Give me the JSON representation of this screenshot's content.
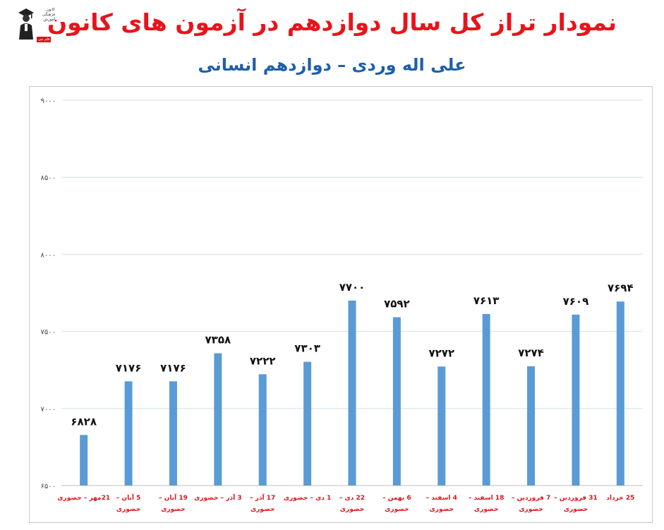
{
  "header": {
    "title": "نمودار تراز کل سال دوازدهم در آزمون های کانون",
    "subtitle": "علی اله وردی – دوازدهم انسانی"
  },
  "logo": {
    "text": "کانون فرهنگی آموزش",
    "badge": "قلم چی"
  },
  "colors": {
    "title": "#e8141b",
    "subtitle": "#1f5fa8",
    "bar": "#5b9bd5",
    "grid": "#cfe0ee",
    "xlabel": "#e0141b"
  },
  "chart_data": {
    "type": "bar",
    "categories": [
      [
        "21مهر – حضوری"
      ],
      [
        "5 آبان –",
        "حضوری"
      ],
      [
        "19 آبان –",
        "حضوری"
      ],
      [
        "3 آذر – حضوری"
      ],
      [
        "17 آذر –",
        "حضوری"
      ],
      [
        "1 دی – حضوری"
      ],
      [
        "22 دی –",
        "حضوری"
      ],
      [
        "6 بهمن –",
        "حضوری"
      ],
      [
        "4 اسفند –",
        "حضوری"
      ],
      [
        "18 اسفند –",
        "حضوری"
      ],
      [
        "7 فروردین –",
        "حضوری"
      ],
      [
        "31 فروردین –",
        "حضوری"
      ],
      [
        "25 خرداد"
      ]
    ],
    "values": [
      6828,
      7176,
      7176,
      7358,
      7222,
      7303,
      7700,
      7592,
      7272,
      7613,
      7274,
      7609,
      7694
    ],
    "value_labels": [
      "۶۸۲۸",
      "۷۱۷۶",
      "۷۱۷۶",
      "۷۳۵۸",
      "۷۲۲۲",
      "۷۳۰۳",
      "۷۷۰۰",
      "۷۵۹۲",
      "۷۲۷۲",
      "۷۶۱۳",
      "۷۲۷۴",
      "۷۶۰۹",
      "۷۶۹۴"
    ],
    "ylim": [
      6500,
      9000
    ],
    "yticks": [
      6500,
      7000,
      7500,
      8000,
      8500,
      9000
    ],
    "ytick_labels": [
      "۶۵۰۰",
      "۷۰۰۰",
      "۷۵۰۰",
      "۸۰۰۰",
      "۸۵۰۰",
      "۹۰۰۰"
    ],
    "grid": true,
    "title": "نمودار تراز کل سال دوازدهم در آزمون های کانون",
    "subtitle": "علی اله وردی – دوازدهم انسانی",
    "xlabel": "",
    "ylabel": ""
  }
}
